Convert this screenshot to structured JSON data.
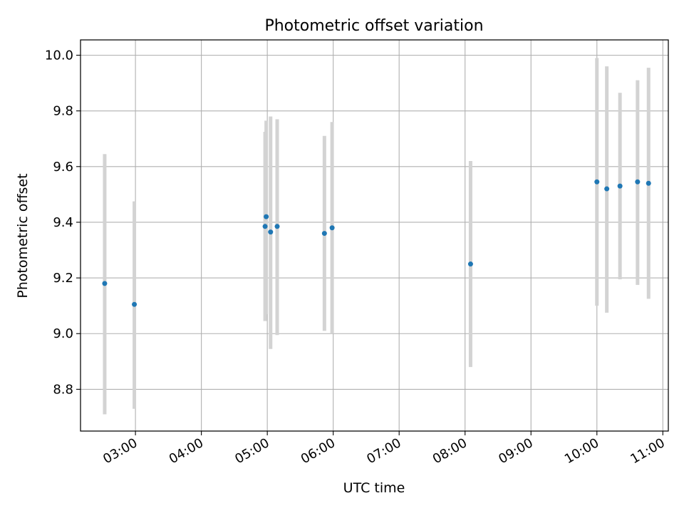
{
  "chart_data": {
    "type": "scatter",
    "title": "Photometric offset variation",
    "xlabel": "UTC time",
    "ylabel": "Photometric offset",
    "x_tick_labels": [
      "03:00",
      "04:00",
      "05:00",
      "06:00",
      "07:00",
      "08:00",
      "09:00",
      "10:00",
      "11:00"
    ],
    "y_tick_labels": [
      "8.8",
      "9.0",
      "9.2",
      "9.4",
      "9.6",
      "9.8",
      "10.0"
    ],
    "xlim": [
      "02:10",
      "11:05"
    ],
    "ylim": [
      8.65,
      10.055
    ],
    "grid": true,
    "series": [
      {
        "marker_color": "#1f77b4",
        "errorbar_color": "#d3d3d3",
        "points": [
          {
            "x": "02:32",
            "y": 9.18,
            "ylow": 8.71,
            "yhigh": 9.645
          },
          {
            "x": "02:59",
            "y": 9.105,
            "ylow": 8.73,
            "yhigh": 9.475
          },
          {
            "x": "04:58",
            "y": 9.385,
            "ylow": 9.045,
            "yhigh": 9.725
          },
          {
            "x": "04:59",
            "y": 9.42,
            "ylow": 9.07,
            "yhigh": 9.765
          },
          {
            "x": "05:03",
            "y": 9.365,
            "ylow": 8.945,
            "yhigh": 9.78
          },
          {
            "x": "05:09",
            "y": 9.385,
            "ylow": 8.995,
            "yhigh": 9.77
          },
          {
            "x": "05:52",
            "y": 9.36,
            "ylow": 9.01,
            "yhigh": 9.71
          },
          {
            "x": "05:59",
            "y": 9.38,
            "ylow": 9.0,
            "yhigh": 9.76
          },
          {
            "x": "08:05",
            "y": 9.25,
            "ylow": 8.88,
            "yhigh": 9.62
          },
          {
            "x": "10:00",
            "y": 9.545,
            "ylow": 9.1,
            "yhigh": 9.99
          },
          {
            "x": "10:09",
            "y": 9.52,
            "ylow": 9.075,
            "yhigh": 9.96
          },
          {
            "x": "10:21",
            "y": 9.53,
            "ylow": 9.195,
            "yhigh": 9.865
          },
          {
            "x": "10:37",
            "y": 9.545,
            "ylow": 9.175,
            "yhigh": 9.91
          },
          {
            "x": "10:47",
            "y": 9.54,
            "ylow": 9.125,
            "yhigh": 9.955
          }
        ]
      }
    ]
  }
}
